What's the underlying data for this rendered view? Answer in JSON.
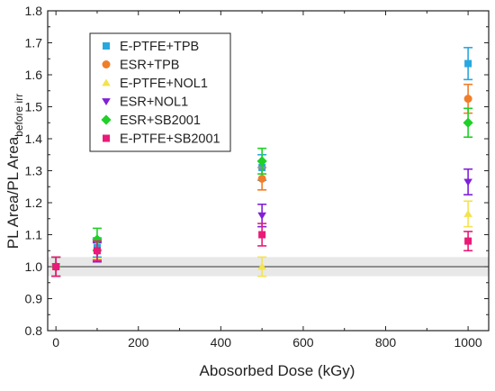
{
  "chart_data": {
    "type": "scatter",
    "xlabel": "Abosorbed Dose (kGy)",
    "ylabel_main": "PL Area/PL Area",
    "ylabel_sub": "before irr",
    "xlim": [
      -20,
      1050
    ],
    "ylim": [
      0.8,
      1.8
    ],
    "xticks": [
      0,
      200,
      400,
      600,
      800,
      1000
    ],
    "yticks": [
      0.8,
      0.9,
      1.0,
      1.1,
      1.2,
      1.3,
      1.4,
      1.5,
      1.6,
      1.7,
      1.8
    ],
    "xtick_labels": [
      "0",
      "200",
      "400",
      "600",
      "800",
      "1000"
    ],
    "ytick_labels": [
      "0.8",
      "0.9",
      "1.0",
      "1.1",
      "1.2",
      "1.3",
      "1.4",
      "1.5",
      "1.6",
      "1.7",
      "1.8"
    ],
    "reference_line": 1.0,
    "reference_band": [
      0.97,
      1.03
    ],
    "grid": false,
    "legend_position": "top-left",
    "series": [
      {
        "name": "E-PTFE+TPB",
        "color": "#29a8e0",
        "marker": "square",
        "x": [
          0,
          100,
          500,
          1000
        ],
        "y": [
          1.0,
          1.06,
          1.31,
          1.635
        ],
        "err": [
          0.03,
          0.03,
          0.04,
          0.05
        ]
      },
      {
        "name": "ESR+TPB",
        "color": "#f07d2a",
        "marker": "circle",
        "x": [
          0,
          100,
          500,
          1000
        ],
        "y": [
          1.0,
          1.05,
          1.275,
          1.525
        ],
        "err": [
          0.03,
          0.03,
          0.035,
          0.045
        ]
      },
      {
        "name": "E-PTFE+NOL1",
        "color": "#f3e34d",
        "marker": "triangle-up",
        "x": [
          0,
          100,
          500,
          1000
        ],
        "y": [
          1.0,
          1.055,
          1.0,
          1.165
        ],
        "err": [
          0.03,
          0.03,
          0.03,
          0.04
        ]
      },
      {
        "name": "ESR+NOL1",
        "color": "#8020d8",
        "marker": "triangle-down",
        "x": [
          0,
          100,
          500,
          1000
        ],
        "y": [
          1.0,
          1.045,
          1.16,
          1.265
        ],
        "err": [
          0.03,
          0.03,
          0.035,
          0.04
        ]
      },
      {
        "name": "ESR+SB2001",
        "color": "#1fd027",
        "marker": "diamond",
        "x": [
          0,
          100,
          500,
          1000
        ],
        "y": [
          1.0,
          1.085,
          1.33,
          1.45
        ],
        "err": [
          0.03,
          0.035,
          0.04,
          0.045
        ]
      },
      {
        "name": "E-PTFE+SB2001",
        "color": "#ea1a78",
        "marker": "square",
        "x": [
          0,
          100,
          500,
          1000
        ],
        "y": [
          1.0,
          1.05,
          1.1,
          1.08
        ],
        "err": [
          0.03,
          0.03,
          0.035,
          0.03
        ]
      }
    ]
  }
}
